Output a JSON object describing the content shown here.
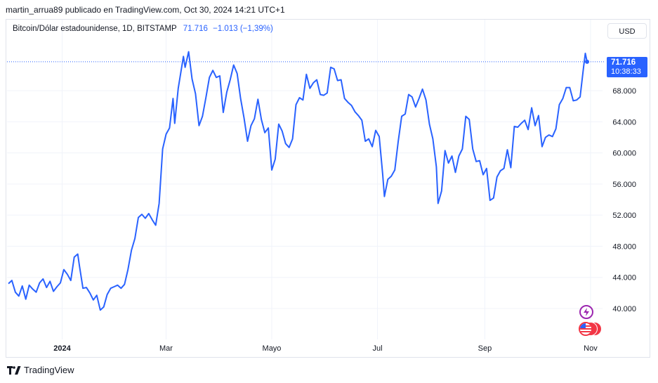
{
  "header": {
    "publisher_line": "martin_arrua89 publicado en TradingView.com, Oct 30, 2024 14:21 UTC+1"
  },
  "legend": {
    "symbol": "Bitcoin/Dólar estadounidense, 1D, BITSTAMP",
    "last": "71.716",
    "change": "−1.013 (−1,39%)"
  },
  "currency_button": {
    "label": "USD"
  },
  "price_tag": {
    "price": "71.716",
    "countdown": "10:38:33"
  },
  "footer": {
    "brand": "TradingView"
  },
  "colors": {
    "line": "#2962ff",
    "accent": "#2962ff",
    "event_purple": "#9c27b0",
    "event_red": "#f23645"
  },
  "icons": [
    "lightning-icon",
    "us-flag-icon"
  ],
  "chart_data": {
    "type": "line",
    "title": "Bitcoin/Dólar estadounidense, 1D, BITSTAMP",
    "xlabel": "",
    "ylabel": "",
    "x_ticks": [
      "2024",
      "Mar",
      "Mayo",
      "Jul",
      "Sep",
      "Nov"
    ],
    "y_ticks": [
      "40.000",
      "44.000",
      "48.000",
      "52.000",
      "56.000",
      "60.000",
      "64.000",
      "68.000"
    ],
    "ylim": [
      36000,
      77000
    ],
    "grid": true,
    "last_price_line": 71716,
    "series": [
      {
        "x": [
          "2023-12-01",
          "2023-12-03",
          "2023-12-05",
          "2023-12-07",
          "2023-12-09",
          "2023-12-11",
          "2023-12-13",
          "2023-12-15",
          "2023-12-17",
          "2023-12-19",
          "2023-12-21",
          "2023-12-23",
          "2023-12-25",
          "2023-12-27",
          "2023-12-29",
          "2023-12-31",
          "2024-01-02",
          "2024-01-04",
          "2024-01-06",
          "2024-01-08",
          "2024-01-10",
          "2024-01-11",
          "2024-01-13",
          "2024-01-15",
          "2024-01-17",
          "2024-01-19",
          "2024-01-21",
          "2024-01-23",
          "2024-01-25",
          "2024-01-27",
          "2024-01-29",
          "2024-01-31",
          "2024-02-02",
          "2024-02-04",
          "2024-02-06",
          "2024-02-08",
          "2024-02-10",
          "2024-02-12",
          "2024-02-14",
          "2024-02-16",
          "2024-02-18",
          "2024-02-20",
          "2024-02-22",
          "2024-02-24",
          "2024-02-26",
          "2024-02-28",
          "2024-03-01",
          "2024-03-03",
          "2024-03-05",
          "2024-03-06",
          "2024-03-08",
          "2024-03-11",
          "2024-03-12",
          "2024-03-14",
          "2024-03-16",
          "2024-03-18",
          "2024-03-20",
          "2024-03-22",
          "2024-03-24",
          "2024-03-26",
          "2024-03-28",
          "2024-03-30",
          "2024-04-01",
          "2024-04-03",
          "2024-04-05",
          "2024-04-07",
          "2024-04-09",
          "2024-04-11",
          "2024-04-13",
          "2024-04-15",
          "2024-04-17",
          "2024-04-19",
          "2024-04-21",
          "2024-04-23",
          "2024-04-25",
          "2024-04-27",
          "2024-04-29",
          "2024-05-01",
          "2024-05-03",
          "2024-05-05",
          "2024-05-07",
          "2024-05-09",
          "2024-05-11",
          "2024-05-13",
          "2024-05-15",
          "2024-05-17",
          "2024-05-19",
          "2024-05-21",
          "2024-05-23",
          "2024-05-25",
          "2024-05-27",
          "2024-05-29",
          "2024-05-31",
          "2024-06-02",
          "2024-06-04",
          "2024-06-06",
          "2024-06-08",
          "2024-06-10",
          "2024-06-12",
          "2024-06-14",
          "2024-06-16",
          "2024-06-18",
          "2024-06-20",
          "2024-06-22",
          "2024-06-24",
          "2024-06-26",
          "2024-06-28",
          "2024-06-30",
          "2024-07-02",
          "2024-07-04",
          "2024-07-05",
          "2024-07-07",
          "2024-07-09",
          "2024-07-11",
          "2024-07-13",
          "2024-07-15",
          "2024-07-17",
          "2024-07-19",
          "2024-07-21",
          "2024-07-23",
          "2024-07-25",
          "2024-07-27",
          "2024-07-29",
          "2024-07-31",
          "2024-08-02",
          "2024-08-04",
          "2024-08-05",
          "2024-08-07",
          "2024-08-09",
          "2024-08-11",
          "2024-08-13",
          "2024-08-15",
          "2024-08-17",
          "2024-08-19",
          "2024-08-21",
          "2024-08-23",
          "2024-08-25",
          "2024-08-27",
          "2024-08-29",
          "2024-08-31",
          "2024-09-02",
          "2024-09-04",
          "2024-09-06",
          "2024-09-08",
          "2024-09-10",
          "2024-09-12",
          "2024-09-14",
          "2024-09-16",
          "2024-09-18",
          "2024-09-20",
          "2024-09-22",
          "2024-09-24",
          "2024-09-26",
          "2024-09-28",
          "2024-09-30",
          "2024-10-02",
          "2024-10-04",
          "2024-10-06",
          "2024-10-08",
          "2024-10-10",
          "2024-10-12",
          "2024-10-14",
          "2024-10-16",
          "2024-10-18",
          "2024-10-20",
          "2024-10-22",
          "2024-10-24",
          "2024-10-26",
          "2024-10-28",
          "2024-10-29",
          "2024-10-30"
        ],
        "values": [
          43200,
          43600,
          42100,
          41600,
          42900,
          41200,
          43000,
          42500,
          42100,
          43300,
          43800,
          42700,
          43500,
          42200,
          42800,
          43300,
          45000,
          44400,
          43600,
          46600,
          47000,
          45500,
          42600,
          42700,
          42000,
          41100,
          41700,
          39800,
          40200,
          41800,
          42600,
          42800,
          43000,
          42600,
          43100,
          45000,
          47500,
          49000,
          51700,
          52100,
          51600,
          52200,
          51400,
          50700,
          53500,
          60500,
          62400,
          63200,
          67000,
          63800,
          68300,
          72400,
          71000,
          73000,
          69500,
          67600,
          63500,
          64700,
          67100,
          69700,
          70600,
          69700,
          69900,
          65200,
          67800,
          69400,
          71300,
          70200,
          67000,
          64500,
          61500,
          63500,
          64400,
          66900,
          64300,
          62600,
          63200,
          57800,
          59200,
          63700,
          62800,
          61200,
          60700,
          61800,
          66200,
          67100,
          66800,
          70100,
          68300,
          69000,
          69400,
          67500,
          67400,
          67700,
          71000,
          70800,
          69300,
          69400,
          67000,
          66500,
          66100,
          65300,
          64800,
          64200,
          61500,
          61800,
          60800,
          62900,
          62100,
          57300,
          54400,
          56600,
          57000,
          57800,
          61500,
          64700,
          65000,
          67500,
          67200,
          65900,
          67000,
          68200,
          66800,
          63700,
          61800,
          58200,
          53500,
          55100,
          60300,
          58700,
          59600,
          57500,
          59600,
          60500,
          64700,
          64300,
          60500,
          58900,
          59000,
          57200,
          58000,
          53900,
          54200,
          56900,
          57700,
          58000,
          60400,
          58100,
          63400,
          63300,
          63800,
          64200,
          63000,
          65800,
          63500,
          64800,
          60800,
          62000,
          62300,
          62100,
          63100,
          66200,
          67000,
          68400,
          68400,
          66700,
          66800,
          67200,
          71100,
          72800,
          71716
        ],
        "color": "#2962ff"
      }
    ]
  }
}
